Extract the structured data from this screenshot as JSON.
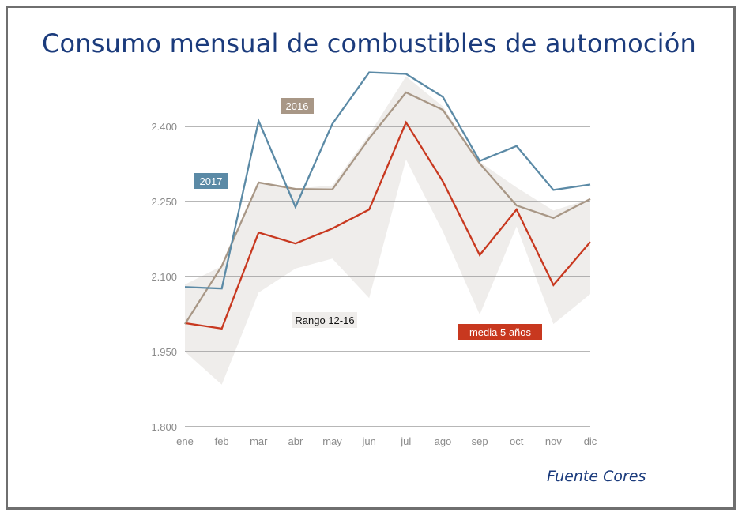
{
  "title": "Consumo mensual de combustibles de automoción",
  "source": "Fuente Cores",
  "chart_data": {
    "type": "line",
    "title": "Consumo mensual de combustibles de automoción",
    "xlabel": "",
    "ylabel": "",
    "categories": [
      "ene",
      "feb",
      "mar",
      "abr",
      "may",
      "jun",
      "jul",
      "ago",
      "sep",
      "oct",
      "nov",
      "dic"
    ],
    "ylim": [
      1800,
      2510
    ],
    "yticks": [
      1800,
      1950,
      2100,
      2250,
      2400
    ],
    "ytick_labels": [
      "1.800",
      "1.950",
      "2.100",
      "2.250",
      "2.400"
    ],
    "grid": true,
    "band": {
      "name": "Rango 12-16",
      "color": "#efedeb",
      "lower": [
        1950,
        1884,
        2068,
        2116,
        2136,
        2057,
        2334,
        2190,
        2024,
        2200,
        2005,
        2065
      ],
      "upper": [
        2084,
        2121,
        2290,
        2276,
        2282,
        2384,
        2500,
        2440,
        2329,
        2278,
        2232,
        2255
      ]
    },
    "series": [
      {
        "name": "2017",
        "color": "#5b8aa6",
        "values": [
          2079,
          2076,
          2411,
          2239,
          2405,
          2508,
          2505,
          2459,
          2331,
          2361,
          2273,
          2284
        ]
      },
      {
        "name": "2016",
        "color": "#a89786",
        "values": [
          2005,
          2121,
          2288,
          2275,
          2274,
          2376,
          2468,
          2433,
          2326,
          2242,
          2217,
          2255
        ]
      },
      {
        "name": "media 5 años",
        "color": "#c8381f",
        "values": [
          2007,
          1996,
          2188,
          2166,
          2196,
          2234,
          2408,
          2290,
          2143,
          2234,
          2083,
          2169
        ]
      }
    ]
  }
}
